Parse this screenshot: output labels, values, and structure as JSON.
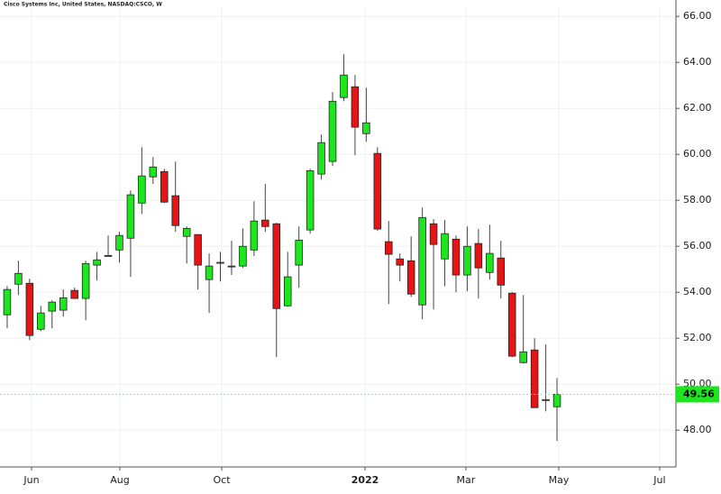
{
  "chart_data": {
    "type": "candlestick",
    "title": "Cisco Systems Inc, United States, NASDAQ:CSCO, W",
    "open": [
      53.02,
      54.35,
      54.39,
      52.39,
      53.18,
      53.22,
      54.08,
      53.73,
      55.18,
      55.6,
      55.84,
      56.35,
      57.88,
      59.02,
      59.25,
      58.2,
      56.43,
      56.51,
      54.55,
      55.3,
      55.14,
      55.14,
      55.84,
      57.14,
      56.98,
      53.41,
      55.18,
      56.71,
      59.14,
      59.69,
      62.47,
      62.94,
      60.9,
      60.04,
      56.2,
      55.45,
      55.37,
      53.45,
      56.98,
      55.45,
      56.31,
      54.75,
      56.12,
      54.86,
      55.49,
      53.96,
      50.94,
      51.49,
      49.33,
      49.02
    ],
    "high": [
      54.27,
      55.37,
      54.59,
      53.41,
      53.65,
      54.12,
      54.2,
      55.37,
      55.76,
      56.47,
      56.63,
      58.43,
      60.31,
      59.88,
      59.37,
      59.69,
      56.86,
      56.51,
      55.69,
      55.76,
      56.24,
      56.78,
      57.96,
      58.71,
      57.02,
      55.76,
      56.86,
      59.37,
      60.86,
      62.71,
      64.35,
      63.45,
      62.9,
      60.31,
      57.1,
      55.69,
      56.43,
      57.69,
      57.18,
      57.14,
      56.47,
      56.86,
      56.75,
      56.94,
      56.24,
      54.0,
      53.88,
      52.0,
      51.73,
      50.27
    ],
    "low": [
      52.43,
      53.88,
      51.92,
      52.31,
      52.43,
      52.94,
      53.73,
      52.78,
      54.51,
      55.57,
      55.29,
      54.67,
      57.41,
      58.71,
      57.88,
      56.63,
      55.25,
      54.12,
      53.1,
      54.47,
      54.75,
      55.06,
      55.57,
      56.63,
      51.18,
      53.37,
      54.2,
      56.55,
      58.9,
      59.49,
      62.31,
      59.96,
      60.55,
      56.67,
      53.49,
      54.47,
      53.8,
      52.82,
      53.25,
      54.27,
      54.0,
      54.04,
      53.73,
      54.55,
      53.73,
      51.18,
      50.9,
      48.98,
      48.82,
      47.53
    ],
    "close": [
      54.12,
      54.82,
      52.12,
      53.1,
      53.57,
      53.76,
      53.73,
      55.25,
      55.41,
      55.57,
      56.47,
      58.24,
      59.06,
      59.45,
      57.92,
      56.9,
      56.78,
      55.18,
      55.14,
      55.3,
      55.14,
      56.0,
      57.1,
      56.86,
      53.29,
      54.67,
      56.27,
      59.29,
      60.51,
      62.31,
      63.45,
      61.18,
      61.37,
      56.75,
      55.65,
      55.18,
      53.92,
      57.25,
      56.08,
      56.55,
      54.75,
      56.0,
      55.06,
      55.69,
      54.31,
      51.22,
      51.41,
      48.98,
      49.33,
      49.56
    ],
    "up_color": "#1ee61e",
    "down_color": "#e61414",
    "xlim": [
      -0.64,
      59.6
    ],
    "xticks": [
      {
        "value": 2.17,
        "label": "Jun"
      },
      {
        "value": 10.04,
        "label": "Aug"
      },
      {
        "value": 19.12,
        "label": "Oct"
      },
      {
        "value": 31.89,
        "label": "2022"
      },
      {
        "value": 40.88,
        "label": "Mar"
      },
      {
        "value": 49.16,
        "label": "May"
      },
      {
        "value": 58.15,
        "label": "Jul"
      }
    ],
    "ylim": [
      46.4,
      66.4
    ],
    "yticks": [
      {
        "value": 48,
        "label": "48.00"
      },
      {
        "value": 50,
        "label": "50.00"
      },
      {
        "value": 52,
        "label": "52.00"
      },
      {
        "value": 54,
        "label": "54.00"
      },
      {
        "value": 56,
        "label": "56.00"
      },
      {
        "value": 58,
        "label": "58.00"
      },
      {
        "value": 60,
        "label": "60.00"
      },
      {
        "value": 62,
        "label": "62.00"
      },
      {
        "value": 64,
        "label": "64.00"
      },
      {
        "value": 66,
        "label": "66.00"
      }
    ],
    "grid": true
  }
}
